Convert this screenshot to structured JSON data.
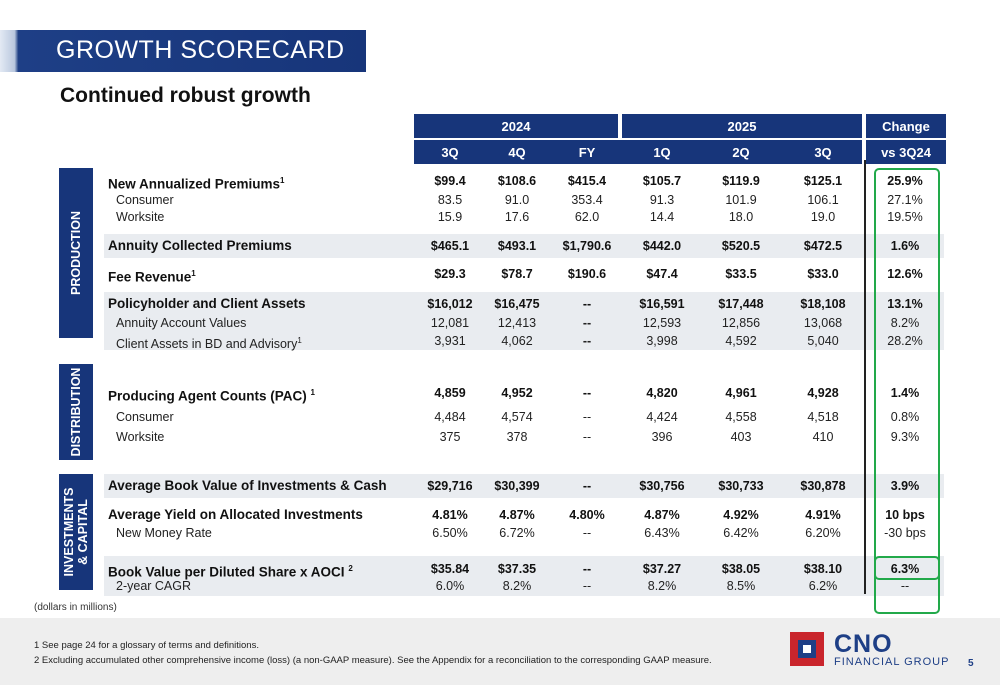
{
  "header": {
    "title": "GROWTH SCORECARD",
    "subtitle": "Continued robust growth"
  },
  "columns": {
    "year_2024": "2024",
    "year_2025": "2025",
    "change_top": "Change",
    "change_bottom": "vs 3Q24",
    "quarters": [
      "3Q",
      "4Q",
      "FY",
      "1Q",
      "2Q",
      "3Q"
    ]
  },
  "sections": {
    "production": "PRODUCTION",
    "distribution": "DISTRIBUTION",
    "investments_1": "INVESTMENTS",
    "investments_2": "& CAPITAL"
  },
  "rows": [
    {
      "label": "New Annualized Premiums",
      "sup": "1",
      "values": [
        "$99.4",
        "$108.6",
        "$415.4",
        "$105.7",
        "$119.9",
        "$125.1",
        "25.9%"
      ]
    },
    {
      "label": "Consumer",
      "values": [
        "83.5",
        "91.0",
        "353.4",
        "91.3",
        "101.9",
        "106.1",
        "27.1%"
      ]
    },
    {
      "label": "Worksite",
      "values": [
        "15.9",
        "17.6",
        "62.0",
        "14.4",
        "18.0",
        "19.0",
        "19.5%"
      ]
    },
    {
      "label": "Annuity Collected Premiums",
      "values": [
        "$465.1",
        "$493.1",
        "$1,790.6",
        "$442.0",
        "$520.5",
        "$472.5",
        "1.6%"
      ]
    },
    {
      "label": "Fee Revenue",
      "sup": "1",
      "values": [
        "$29.3",
        "$78.7",
        "$190.6",
        "$47.4",
        "$33.5",
        "$33.0",
        "12.6%"
      ]
    },
    {
      "label": "Policyholder and Client Assets",
      "values": [
        "$16,012",
        "$16,475",
        "--",
        "$16,591",
        "$17,448",
        "$18,108",
        "13.1%"
      ]
    },
    {
      "label": "Annuity Account Values",
      "values": [
        "12,081",
        "12,413",
        "--",
        "12,593",
        "12,856",
        "13,068",
        "8.2%"
      ]
    },
    {
      "label": "Client Assets in BD and Advisory",
      "sup": "1",
      "values": [
        "3,931",
        "4,062",
        "--",
        "3,998",
        "4,592",
        "5,040",
        "28.2%"
      ]
    },
    {
      "label": "Producing Agent Counts (PAC)",
      "sup": "1",
      "values": [
        "4,859",
        "4,952",
        "--",
        "4,820",
        "4,961",
        "4,928",
        "1.4%"
      ]
    },
    {
      "label": "Consumer",
      "values": [
        "4,484",
        "4,574",
        "--",
        "4,424",
        "4,558",
        "4,518",
        "0.8%"
      ]
    },
    {
      "label": "Worksite",
      "values": [
        "375",
        "378",
        "--",
        "396",
        "403",
        "410",
        "9.3%"
      ]
    },
    {
      "label": "Average Book Value of Investments & Cash",
      "values": [
        "$29,716",
        "$30,399",
        "--",
        "$30,756",
        "$30,733",
        "$30,878",
        "3.9%"
      ]
    },
    {
      "label": "Average Yield on Allocated Investments",
      "values": [
        "4.81%",
        "4.87%",
        "4.80%",
        "4.87%",
        "4.92%",
        "4.91%",
        "10 bps"
      ]
    },
    {
      "label": "New Money Rate",
      "values": [
        "6.50%",
        "6.72%",
        "--",
        "6.43%",
        "6.42%",
        "6.20%",
        "-30 bps"
      ]
    },
    {
      "label": "Book Value per Diluted Share x AOCI",
      "sup": "2",
      "values": [
        "$35.84",
        "$37.35",
        "--",
        "$37.27",
        "$38.05",
        "$38.10",
        "6.3%"
      ]
    },
    {
      "label": "2-year CAGR",
      "values": [
        "6.0%",
        "8.2%",
        "--",
        "8.2%",
        "8.5%",
        "6.2%",
        "--"
      ]
    }
  ],
  "note": "(dollars in millions)",
  "footnotes": [
    "1   See page 24 for a glossary of terms and definitions.",
    "2   Excluding accumulated other comprehensive income (loss) (a non-GAAP measure). See the Appendix for a reconciliation to the corresponding GAAP measure."
  ],
  "logo": {
    "name": "CNO",
    "tagline": "FINANCIAL GROUP"
  },
  "page_number": "5",
  "colors": {
    "navy": "#17357a",
    "highlight": "#22a94a",
    "band": "#e9ecf0"
  }
}
